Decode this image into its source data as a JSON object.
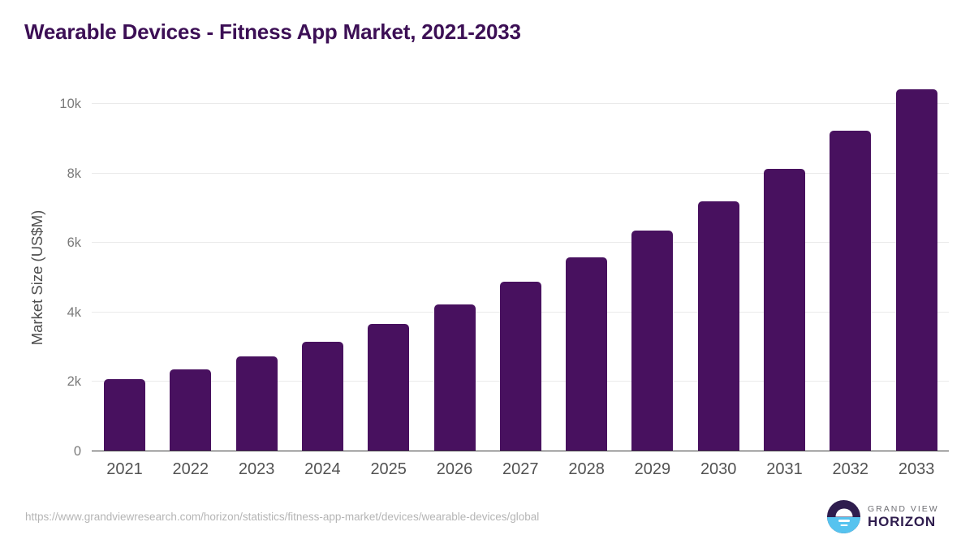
{
  "title": "Wearable Devices - Fitness App Market, 2021-2033",
  "chart_data": {
    "type": "bar",
    "title": "Wearable Devices - Fitness App Market, 2021-2033",
    "categories": [
      "2021",
      "2022",
      "2023",
      "2024",
      "2025",
      "2026",
      "2027",
      "2028",
      "2029",
      "2030",
      "2031",
      "2032",
      "2033"
    ],
    "values": [
      2060,
      2330,
      2720,
      3120,
      3640,
      4200,
      4860,
      5550,
      6340,
      7180,
      8100,
      9210,
      10400
    ],
    "xlabel": "",
    "ylabel": "Market Size (US$M)",
    "unit": "US$M",
    "ylim": [
      0,
      10400
    ],
    "ytick_labels": [
      "0",
      "2k",
      "4k",
      "6k",
      "8k",
      "10k"
    ],
    "ytick_values": [
      0,
      2000,
      4000,
      6000,
      8000,
      10000
    ],
    "grid": "horizontal",
    "legend": "none",
    "bar_color": "#48115f"
  },
  "footer": {
    "source_url": "https://www.grandviewresearch.com/horizon/statistics/fitness-app-market/devices/wearable-devices/global",
    "logo": {
      "line1": "GRAND VIEW",
      "line2": "HORIZON"
    }
  },
  "colors": {
    "background": "#ffffff",
    "title_text": "#3c0f55",
    "bar": "#48115f",
    "gridline": "#eaeaea",
    "axis_line": "#3d3d3d",
    "ytick_text": "#7a7a7a",
    "xtick_text": "#525252",
    "axis_title_text": "#4f4f4f",
    "source_text": "#b5b5b5",
    "logo_dark": "#2f1d4e",
    "logo_blue": "#56c3ef",
    "logo_gray_text": "#6f6f74"
  }
}
